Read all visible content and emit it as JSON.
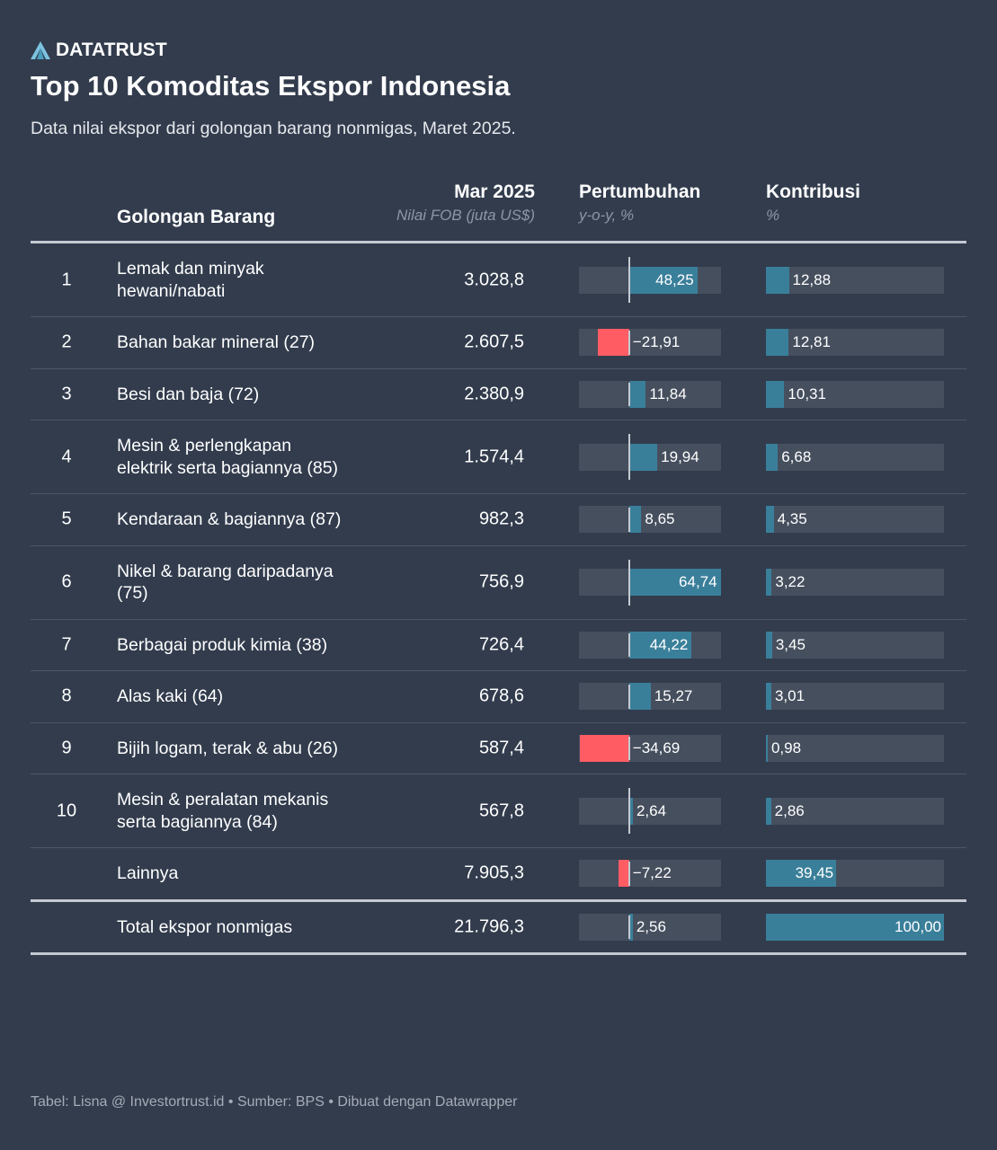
{
  "brand": {
    "name": "DATATRUST",
    "logo": "a-triangle-logo"
  },
  "title": "Top 10 Komoditas Ekspor Indonesia",
  "subtitle": "Data nilai ekspor dari golongan barang nonmigas, Maret 2025.",
  "footer": "Tabel: Lisna @ Investortrust.id • Sumber: BPS • Dibuat dengan Datawrapper",
  "colors": {
    "positive": "#3a7f9a",
    "negative": "#ff5c64",
    "track": "#464f5e",
    "background": "#323c4d"
  },
  "chart_data": {
    "type": "table",
    "columns": {
      "name": "Golongan Barang",
      "value": "Mar 2025",
      "value_sub": "Nilai FOB (juta US$)",
      "growth": "Pertumbuhan",
      "growth_sub": "y-o-y, %",
      "contrib": "Kontribusi",
      "contrib_sub": "%"
    },
    "growth_range": [
      -35.5,
      65
    ],
    "contrib_range": [
      0,
      100
    ],
    "rows": [
      {
        "rank": "1",
        "name": "Lemak dan minyak hewani/nabati",
        "value": "3.028,8",
        "growth": 48.25,
        "growth_label": "48,25",
        "contrib": 12.88,
        "contrib_label": "12,88"
      },
      {
        "rank": "2",
        "name": "Bahan bakar mineral (27)",
        "value": "2.607,5",
        "growth": -21.91,
        "growth_label": "−21,91",
        "contrib": 12.81,
        "contrib_label": "12,81"
      },
      {
        "rank": "3",
        "name": "Besi dan baja (72)",
        "value": "2.380,9",
        "growth": 11.84,
        "growth_label": "11,84",
        "contrib": 10.31,
        "contrib_label": "10,31"
      },
      {
        "rank": "4",
        "name": "Mesin & perlengkapan elektrik serta bagiannya (85)",
        "value": "1.574,4",
        "growth": 19.94,
        "growth_label": "19,94",
        "contrib": 6.68,
        "contrib_label": "6,68"
      },
      {
        "rank": "5",
        "name": "Kendaraan & bagiannya (87)",
        "value": "982,3",
        "growth": 8.65,
        "growth_label": "8,65",
        "contrib": 4.35,
        "contrib_label": "4,35"
      },
      {
        "rank": "6",
        "name": "Nikel & barang daripadanya (75)",
        "value": "756,9",
        "growth": 64.74,
        "growth_label": "64,74",
        "contrib": 3.22,
        "contrib_label": "3,22"
      },
      {
        "rank": "7",
        "name": "Berbagai produk kimia (38)",
        "value": "726,4",
        "growth": 44.22,
        "growth_label": "44,22",
        "contrib": 3.45,
        "contrib_label": "3,45"
      },
      {
        "rank": "8",
        "name": "Alas kaki (64)",
        "value": "678,6",
        "growth": 15.27,
        "growth_label": "15,27",
        "contrib": 3.01,
        "contrib_label": "3,01"
      },
      {
        "rank": "9",
        "name": "Bijih logam, terak & abu (26)",
        "value": "587,4",
        "growth": -34.69,
        "growth_label": "−34,69",
        "contrib": 0.98,
        "contrib_label": "0,98"
      },
      {
        "rank": "10",
        "name": "Mesin & peralatan mekanis serta bagiannya (84)",
        "value": "567,8",
        "growth": 2.64,
        "growth_label": "2,64",
        "contrib": 2.86,
        "contrib_label": "2,86"
      },
      {
        "rank": "",
        "name": "Lainnya",
        "value": "7.905,3",
        "growth": -7.22,
        "growth_label": "−7,22",
        "contrib": 39.45,
        "contrib_label": "39,45"
      },
      {
        "rank": "",
        "name": "Total ekspor nonmigas",
        "value": "21.796,3",
        "growth": 2.56,
        "growth_label": "2,56",
        "contrib": 100,
        "contrib_label": "100,00"
      }
    ]
  }
}
